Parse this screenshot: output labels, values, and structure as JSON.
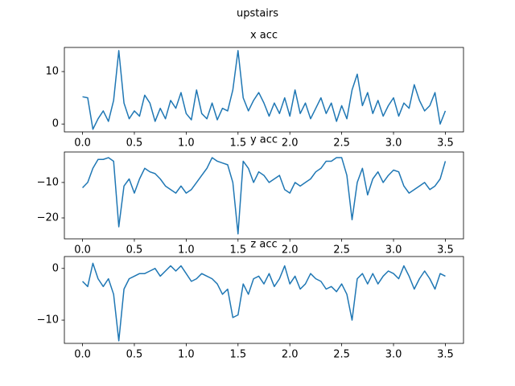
{
  "title": "upstairs",
  "chart_data": [
    {
      "type": "line",
      "title": "x acc",
      "color": "#1f77b4",
      "x": [
        0,
        0.05,
        0.1,
        0.15,
        0.2,
        0.25,
        0.3,
        0.35,
        0.4,
        0.45,
        0.5,
        0.55,
        0.6,
        0.65,
        0.7,
        0.75,
        0.8,
        0.85,
        0.9,
        0.95,
        1,
        1.05,
        1.1,
        1.15,
        1.2,
        1.25,
        1.3,
        1.35,
        1.4,
        1.45,
        1.5,
        1.55,
        1.6,
        1.65,
        1.7,
        1.75,
        1.8,
        1.85,
        1.9,
        1.95,
        2,
        2.05,
        2.1,
        2.15,
        2.2,
        2.25,
        2.3,
        2.35,
        2.4,
        2.45,
        2.5,
        2.55,
        2.6,
        2.65,
        2.7,
        2.75,
        2.8,
        2.85,
        2.9,
        2.95,
        3,
        3.05,
        3.1,
        3.15,
        3.2,
        3.25,
        3.3,
        3.35,
        3.4,
        3.45,
        3.5
      ],
      "values": [
        5.2,
        5.0,
        -1.0,
        1.0,
        2.5,
        0.5,
        4.5,
        14.0,
        4.0,
        1.0,
        2.5,
        1.5,
        5.5,
        4.0,
        0.5,
        3.0,
        1.0,
        4.5,
        3.0,
        6.0,
        2.0,
        0.8,
        6.5,
        2.0,
        1.0,
        4.0,
        0.8,
        3.0,
        2.5,
        6.5,
        14.0,
        5.0,
        2.5,
        4.5,
        6.0,
        4.0,
        1.5,
        4.0,
        2.0,
        5.0,
        1.5,
        6.5,
        2.0,
        4.0,
        1.0,
        3.0,
        5.0,
        2.0,
        4.0,
        0.5,
        3.5,
        1.0,
        6.5,
        9.5,
        3.5,
        6.0,
        2.0,
        4.5,
        1.5,
        3.5,
        5.0,
        1.5,
        4.0,
        3.0,
        7.5,
        4.5,
        2.5,
        3.5,
        6.0,
        0.0,
        2.5
      ],
      "xlim": [
        -0.175,
        3.675
      ],
      "xticks": [
        {
          "value": 0,
          "label": "0.0"
        },
        {
          "value": 0.5,
          "label": "0.5"
        },
        {
          "value": 1,
          "label": "1.0"
        },
        {
          "value": 1.5,
          "label": "1.5"
        },
        {
          "value": 2,
          "label": "2.0"
        },
        {
          "value": 2.5,
          "label": "2.5"
        },
        {
          "value": 3,
          "label": "3.0"
        },
        {
          "value": 3.5,
          "label": "3.5"
        }
      ],
      "ylim": [
        -1.5,
        14.6
      ],
      "yticks": [
        0,
        10
      ]
    },
    {
      "type": "line",
      "title": "y acc",
      "color": "#1f77b4",
      "x": [
        0,
        0.05,
        0.1,
        0.15,
        0.2,
        0.25,
        0.3,
        0.35,
        0.4,
        0.45,
        0.5,
        0.55,
        0.6,
        0.65,
        0.7,
        0.75,
        0.8,
        0.85,
        0.9,
        0.95,
        1,
        1.05,
        1.1,
        1.15,
        1.2,
        1.25,
        1.3,
        1.35,
        1.4,
        1.45,
        1.5,
        1.55,
        1.6,
        1.65,
        1.7,
        1.75,
        1.8,
        1.85,
        1.9,
        1.95,
        2,
        2.05,
        2.1,
        2.15,
        2.2,
        2.25,
        2.3,
        2.35,
        2.4,
        2.45,
        2.5,
        2.55,
        2.6,
        2.65,
        2.7,
        2.75,
        2.8,
        2.85,
        2.9,
        2.95,
        3,
        3.05,
        3.1,
        3.15,
        3.2,
        3.25,
        3.3,
        3.35,
        3.4,
        3.45,
        3.5
      ],
      "values": [
        -11.5,
        -10,
        -6,
        -3.5,
        -3.5,
        -3,
        -4,
        -22.5,
        -11,
        -9,
        -13,
        -9,
        -6,
        -7,
        -7.5,
        -9,
        -11,
        -12,
        -13,
        -11,
        -13,
        -12,
        -10,
        -8,
        -6,
        -3,
        -4,
        -4.5,
        -5,
        -10,
        -24.5,
        -4,
        -6,
        -10,
        -7,
        -8,
        -10,
        -9,
        -8,
        -12,
        -13,
        -10,
        -11,
        -10,
        -9,
        -7,
        -6,
        -4,
        -4,
        -3,
        -3,
        -8,
        -20.5,
        -10,
        -6,
        -13.5,
        -9,
        -7,
        -10,
        -8,
        -6.5,
        -7,
        -11,
        -13,
        -12,
        -11,
        -10,
        -12,
        -11,
        -9,
        -4
      ],
      "xlim": [
        -0.175,
        3.675
      ],
      "xticks": [
        {
          "value": 0,
          "label": "0.0"
        },
        {
          "value": 0.5,
          "label": "0.5"
        },
        {
          "value": 1,
          "label": "1.0"
        },
        {
          "value": 1.5,
          "label": "1.5"
        },
        {
          "value": 2,
          "label": "2.0"
        },
        {
          "value": 2.5,
          "label": "2.5"
        },
        {
          "value": 3,
          "label": "3.0"
        },
        {
          "value": 3.5,
          "label": "3.5"
        }
      ],
      "ylim": [
        -25.9,
        -1.4
      ],
      "yticks": [
        {
          "value": -20,
          "label": "−20"
        },
        {
          "value": -10,
          "label": "−10"
        }
      ]
    },
    {
      "type": "line",
      "title": "z acc",
      "color": "#1f77b4",
      "x": [
        0,
        0.05,
        0.1,
        0.15,
        0.2,
        0.25,
        0.3,
        0.35,
        0.4,
        0.45,
        0.5,
        0.55,
        0.6,
        0.65,
        0.7,
        0.75,
        0.8,
        0.85,
        0.9,
        0.95,
        1,
        1.05,
        1.1,
        1.15,
        1.2,
        1.25,
        1.3,
        1.35,
        1.4,
        1.45,
        1.5,
        1.55,
        1.6,
        1.65,
        1.7,
        1.75,
        1.8,
        1.85,
        1.9,
        1.95,
        2,
        2.05,
        2.1,
        2.15,
        2.2,
        2.25,
        2.3,
        2.35,
        2.4,
        2.45,
        2.5,
        2.55,
        2.6,
        2.65,
        2.7,
        2.75,
        2.8,
        2.85,
        2.9,
        2.95,
        3,
        3.05,
        3.1,
        3.15,
        3.2,
        3.25,
        3.3,
        3.35,
        3.4,
        3.45,
        3.5
      ],
      "values": [
        -2.5,
        -3.5,
        1,
        -2,
        -3.5,
        -2,
        -5,
        -14,
        -4,
        -2,
        -1.5,
        -1,
        -1,
        -0.5,
        0,
        -1.5,
        -0.5,
        0.5,
        -0.5,
        0.5,
        -1,
        -2.5,
        -2,
        -1,
        -1.5,
        -2,
        -3,
        -5,
        -4,
        -9.5,
        -9,
        -3,
        -5,
        -2,
        -1.5,
        -3,
        -1,
        -3.5,
        -2,
        0.5,
        -3,
        -1.5,
        -4,
        -3,
        -1,
        -2,
        -2.5,
        -4,
        -3.5,
        -4.5,
        -3,
        -5,
        -10,
        -2,
        -1,
        -3,
        -1,
        -3,
        -1.5,
        -0.5,
        -1,
        -2,
        0.5,
        -1.5,
        -4,
        -2,
        -0.5,
        -2,
        -4,
        -1,
        -1.5
      ],
      "xlim": [
        -0.175,
        3.675
      ],
      "xticks": [
        {
          "value": 0,
          "label": "0.0"
        },
        {
          "value": 0.5,
          "label": "0.5"
        },
        {
          "value": 1,
          "label": "1.0"
        },
        {
          "value": 1.5,
          "label": "1.5"
        },
        {
          "value": 2,
          "label": "2.0"
        },
        {
          "value": 2.5,
          "label": "2.5"
        },
        {
          "value": 3,
          "label": "3.0"
        },
        {
          "value": 3.5,
          "label": "3.5"
        }
      ],
      "ylim": [
        -14.5,
        2.3
      ],
      "yticks": [
        {
          "value": -10,
          "label": "−10"
        },
        0
      ]
    }
  ]
}
